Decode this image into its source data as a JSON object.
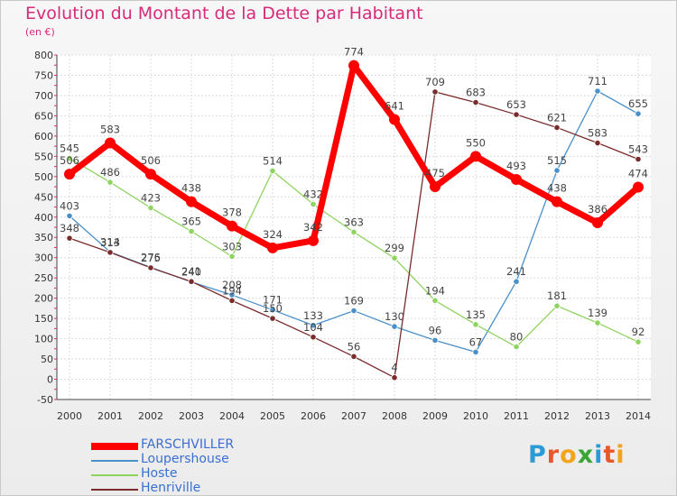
{
  "title": "Evolution du Montant de la Dette par Habitant",
  "unit": "(en €)",
  "logo": {
    "text": "Proxiti"
  },
  "chart_data": {
    "type": "line",
    "x": [
      "2000",
      "2001",
      "2002",
      "2003",
      "2004",
      "2005",
      "2006",
      "2007",
      "2008",
      "2009",
      "2010",
      "2011",
      "2012",
      "2013",
      "2014"
    ],
    "ylim": [
      -50,
      800
    ],
    "yticks": [
      -50,
      0,
      50,
      100,
      150,
      200,
      250,
      300,
      350,
      400,
      450,
      500,
      550,
      600,
      650,
      700,
      750,
      800
    ],
    "grid": true,
    "legend": "bottom-left",
    "series": [
      {
        "name": "FARSCHVILLER",
        "color": "#ff0000",
        "values": [
          506,
          583,
          506,
          438,
          378,
          324,
          342,
          774,
          641,
          475,
          550,
          493,
          438,
          386,
          474
        ]
      },
      {
        "name": "Loupershouse",
        "color": "#4a90c8",
        "values": [
          403,
          314,
          276,
          240,
          208,
          171,
          133,
          169,
          130,
          96,
          67,
          241,
          515,
          711,
          655
        ]
      },
      {
        "name": "Hoste",
        "color": "#8fd360",
        "values": [
          545,
          486,
          423,
          365,
          303,
          514,
          432,
          363,
          299,
          194,
          135,
          80,
          181,
          139,
          92
        ]
      },
      {
        "name": "Henriville",
        "color": "#7a2c2c",
        "values": [
          348,
          313,
          275,
          241,
          194,
          150,
          104,
          56,
          4,
          709,
          683,
          653,
          621,
          583,
          543
        ]
      }
    ]
  }
}
